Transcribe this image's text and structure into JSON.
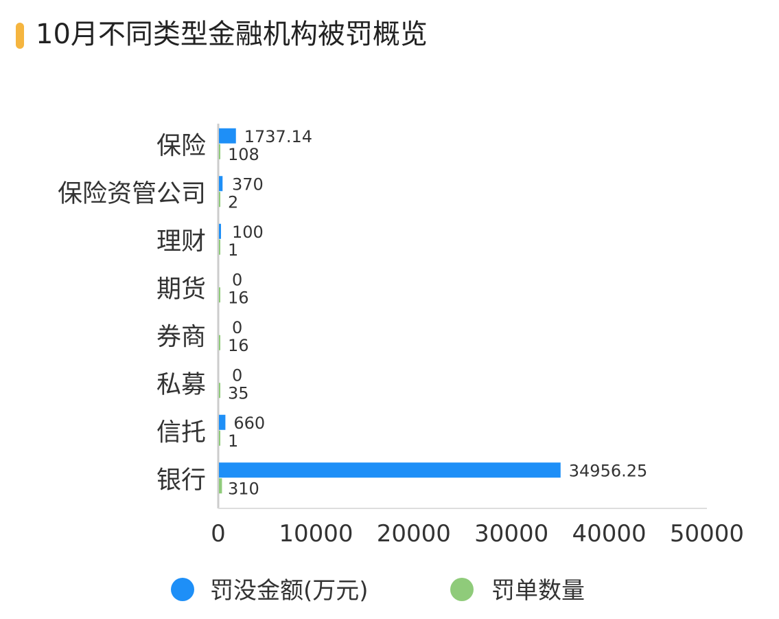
{
  "chart_data": {
    "type": "bar",
    "orientation": "horizontal",
    "title": "10月不同类型金融机构被罚概览",
    "categories": [
      "保险",
      "保险资管公司",
      "理财",
      "期货",
      "券商",
      "私募",
      "信托",
      "银行"
    ],
    "series": [
      {
        "name": "罚没金额(万元)",
        "color": "#1e8ff7",
        "values": [
          1737.14,
          370,
          100,
          0,
          0,
          0,
          660,
          34956.25
        ],
        "labels": [
          "1737.14",
          "370",
          "100",
          "0",
          "0",
          "0",
          "660",
          "34956.25"
        ]
      },
      {
        "name": "罚单数量",
        "color": "#8fcb7a",
        "values": [
          108,
          2,
          1,
          16,
          16,
          35,
          1,
          310
        ],
        "labels": [
          "108",
          "2",
          "1",
          "16",
          "16",
          "35",
          "1",
          "310"
        ]
      }
    ],
    "xlim": [
      0,
      50000
    ],
    "xticks": [
      "0",
      "10000",
      "20000",
      "30000",
      "40000",
      "50000"
    ],
    "grid": false,
    "legend": "bottom",
    "accent": "#f5b53f"
  }
}
